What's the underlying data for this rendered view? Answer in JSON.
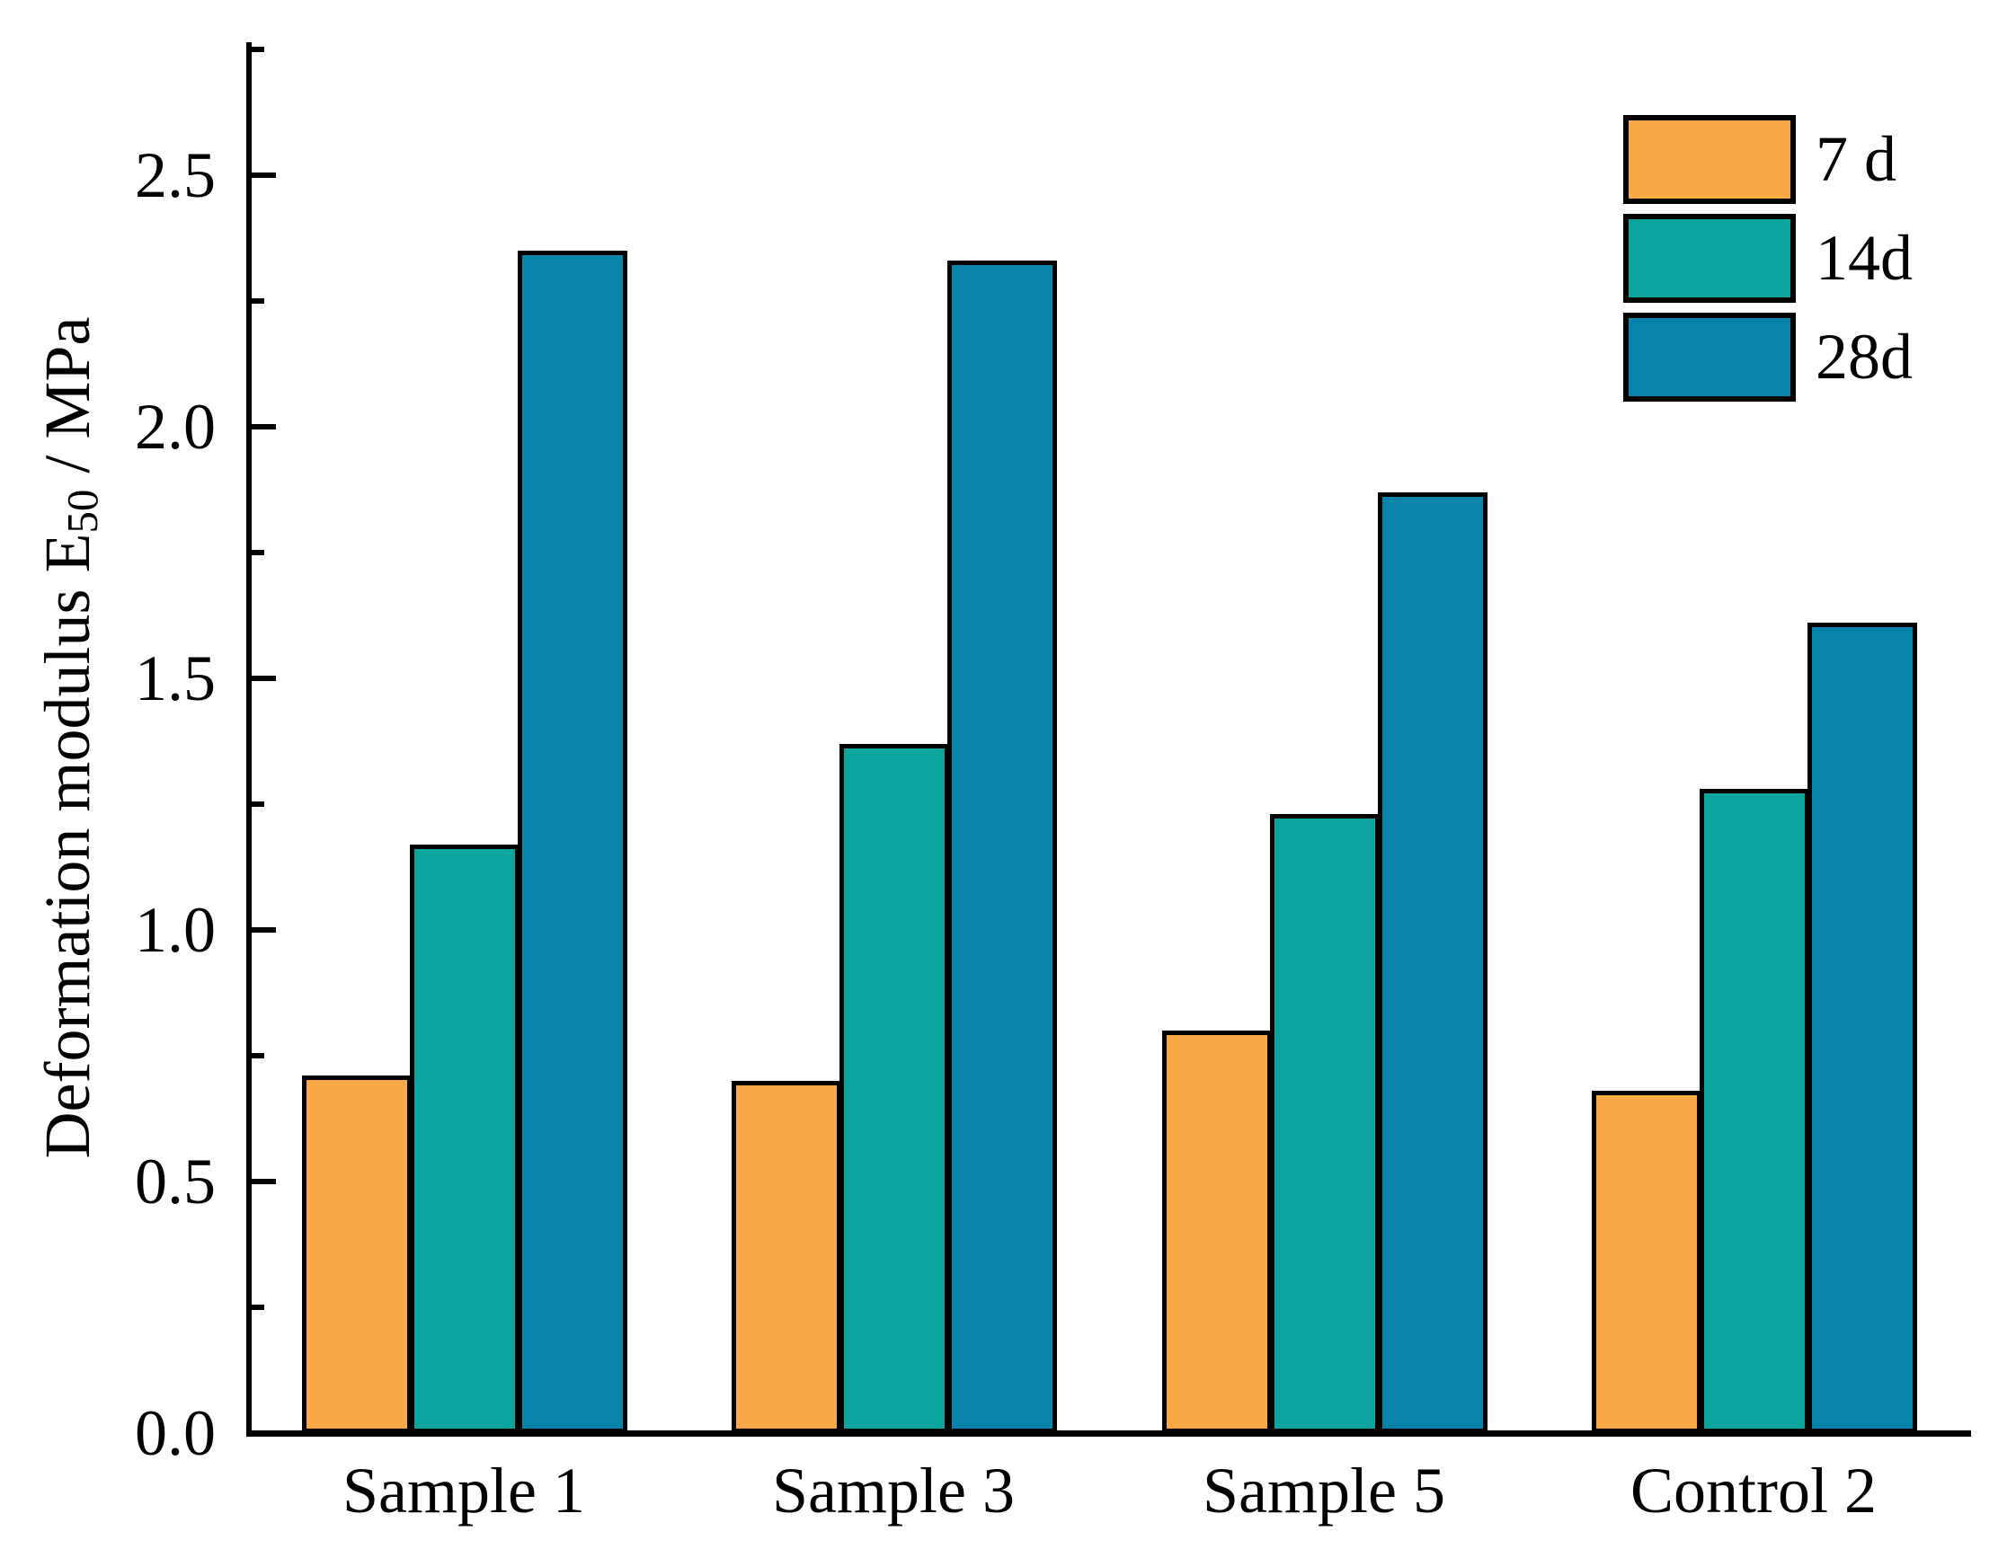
{
  "chart_data": {
    "type": "bar",
    "title": "",
    "categories": [
      "Sample 1",
      "Sample 3",
      "Sample 5",
      "Control 2"
    ],
    "series": [
      {
        "name": "7 d",
        "color": "#F8A846",
        "values": [
          0.71,
          0.7,
          0.8,
          0.68
        ]
      },
      {
        "name": "14d",
        "color": "#0CA59D",
        "values": [
          1.17,
          1.37,
          1.23,
          1.28
        ]
      },
      {
        "name": "28d",
        "color": "#0784A8",
        "values": [
          2.35,
          2.33,
          1.87,
          1.61
        ]
      }
    ],
    "xlabel": "",
    "ylabel": "Deformation modulus E50 / MPa",
    "ylabel_parts": {
      "prefix": "Deformation modulus E",
      "subscript": "50",
      "suffix": " / MPa"
    },
    "ylim": [
      0,
      2.77
    ],
    "ytick_major_values": [
      0.0,
      0.5,
      1.0,
      1.5,
      2.0,
      2.5
    ],
    "ytick_major_labels": [
      "0.0",
      "0.5",
      "1.0",
      "1.5",
      "2.0",
      "2.5"
    ],
    "ytick_minor_values": [
      0.25,
      0.75,
      1.25,
      1.75,
      2.25,
      2.75
    ],
    "legend": {
      "position": "top-right",
      "entries": [
        "7 d",
        "14d",
        "28d"
      ]
    },
    "grid": false,
    "bar_border_color": "#000000",
    "axis_color": "#000000",
    "background_color": "#FFFFFF"
  }
}
